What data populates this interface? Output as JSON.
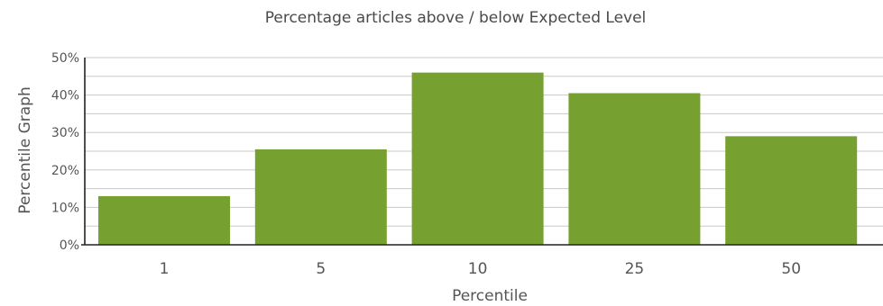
{
  "chart_data": {
    "type": "bar",
    "title": "Percentage articles above / below Expected Level",
    "xlabel": "Percentile",
    "ylabel": "Percentile Graph",
    "categories": [
      "1",
      "5",
      "10",
      "25",
      "50"
    ],
    "values": [
      13,
      25.5,
      46,
      40.5,
      29
    ],
    "ylim": [
      0,
      50
    ],
    "y_ticks": [
      "0%",
      "10%",
      "20%",
      "30%",
      "40%",
      "50%"
    ],
    "grid": true,
    "bar_color": "#76a030"
  }
}
